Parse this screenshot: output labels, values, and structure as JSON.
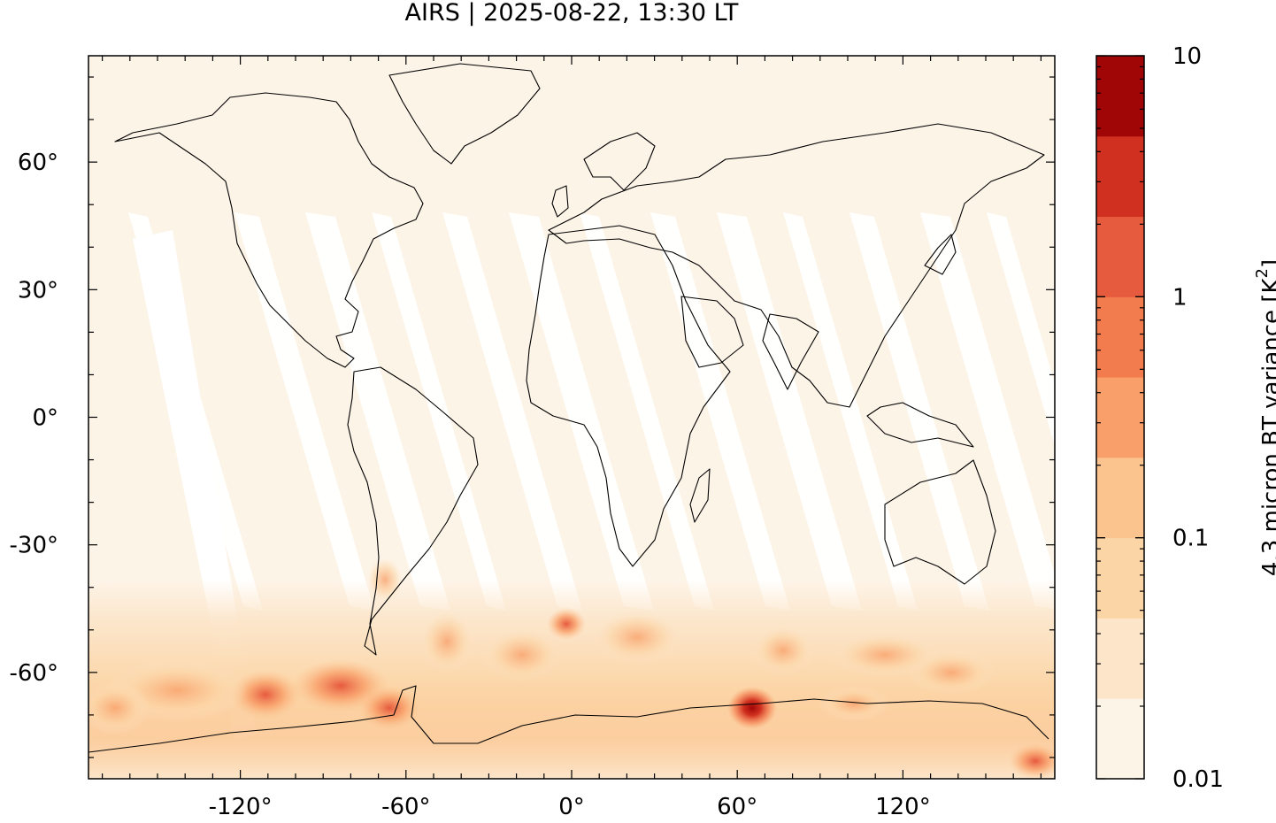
{
  "title": "AIRS | 2025-08-22, 13:30 LT",
  "map": {
    "x_ticks": [
      {
        "value": -120,
        "label": "-120°"
      },
      {
        "value": -60,
        "label": "-60°"
      },
      {
        "value": 0,
        "label": "0°"
      },
      {
        "value": 60,
        "label": "60°"
      },
      {
        "value": 120,
        "label": "120°"
      }
    ],
    "y_ticks": [
      {
        "value": 60,
        "label": "60°"
      },
      {
        "value": 30,
        "label": "30°"
      },
      {
        "value": 0,
        "label": "0°"
      },
      {
        "value": -30,
        "label": "-30°"
      },
      {
        "value": -60,
        "label": "-60°"
      }
    ],
    "lon_range": [
      -175,
      175
    ],
    "lat_range": [
      -85,
      85
    ],
    "background_color": "#fdf4e8",
    "swath_gap_color": "#ffffff",
    "coastline_color": "#000000"
  },
  "colorbar": {
    "label": "4.3 micron BT variance [K",
    "label_sup": "2",
    "label_end": "]",
    "scale": "log",
    "range": [
      0.01,
      10
    ],
    "tick_labels": [
      {
        "value": 10,
        "label": "10"
      },
      {
        "value": 1,
        "label": "1"
      },
      {
        "value": 0.1,
        "label": "0.1"
      },
      {
        "value": 0.01,
        "label": "0.01"
      }
    ],
    "colors": [
      "#fdf4e8",
      "#fce5c9",
      "#fcd5a6",
      "#fbc48e",
      "#f99f69",
      "#f37c4f",
      "#e65a3e",
      "#d0301f",
      "#a00606"
    ]
  }
}
